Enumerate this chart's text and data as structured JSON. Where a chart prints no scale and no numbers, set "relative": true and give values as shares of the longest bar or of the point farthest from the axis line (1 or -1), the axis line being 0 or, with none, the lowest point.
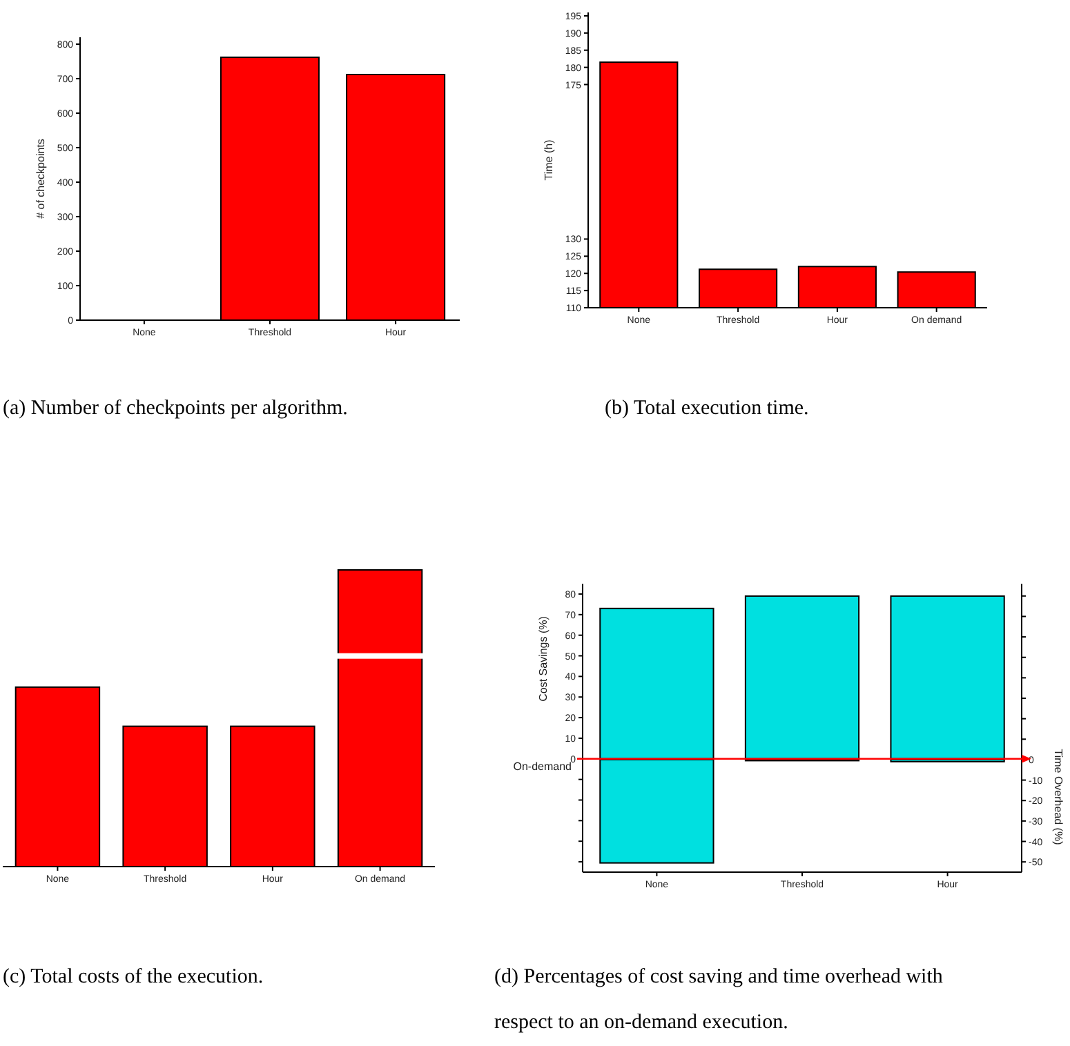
{
  "chart_data": [
    {
      "type": "bar",
      "title": "(a) Number of checkpoints per algorithm.",
      "ylabel": "# of checkpoints",
      "categories": [
        "None",
        "Threshold",
        "Hour"
      ],
      "values": [
        0,
        762,
        712
      ],
      "color": "#ff0000",
      "ylim": [
        0,
        820
      ],
      "yticks": [
        0,
        100,
        200,
        300,
        400,
        500,
        600,
        700,
        800
      ]
    },
    {
      "type": "bar",
      "title": "(b) Total execution time.",
      "ylabel": "Time (h)",
      "categories": [
        "None",
        "Threshold",
        "Hour",
        "On demand"
      ],
      "values": [
        181.5,
        121.2,
        122.0,
        120.4
      ],
      "color": "#ff0000",
      "ylim": [
        110,
        196
      ],
      "yticks": [
        110,
        115,
        120,
        125,
        130,
        175,
        180,
        185,
        190,
        195
      ]
    },
    {
      "type": "bar",
      "title": "(c) Total costs of the execution.",
      "categories": [
        "None",
        "Threshold",
        "Hour",
        "On demand"
      ],
      "values": [
        0.605,
        0.473,
        0.473,
        1
      ],
      "color": "#ff0000",
      "relative": true,
      "tick_labels": "x"
    },
    {
      "type": "bar",
      "stacked": true,
      "title": "(d) Percentages of cost saving and time overhead with respect to an on-demand execution.",
      "ylabel": "Cost Savings (%)",
      "y2label": "Time Overhead (%)",
      "categories": [
        "None",
        "Threshold",
        "Hour"
      ],
      "series": [
        {
          "color": "#00e0e0",
          "values": [
            73,
            79,
            79
          ]
        },
        {
          "color": "#00e0e0",
          "axis": "y2",
          "values": [
            -50.5,
            -0.5,
            -1
          ]
        }
      ],
      "ylim": [
        -55,
        85
      ],
      "yticks": [
        {
          "value": -50,
          "label": null
        },
        {
          "value": -40,
          "label": null
        },
        {
          "value": -30,
          "label": null
        },
        {
          "value": -20,
          "label": null
        },
        {
          "value": -10,
          "label": null
        },
        0,
        10,
        20,
        30,
        40,
        50,
        60,
        70,
        80
      ],
      "y2lim": [
        -55,
        86
      ],
      "y2ticks": [
        -50,
        -40,
        -30,
        -20,
        -10,
        0,
        {
          "value": 10,
          "label": null
        },
        {
          "value": 20,
          "label": null
        },
        {
          "value": 30,
          "label": null
        },
        {
          "value": 40,
          "label": null
        },
        {
          "value": 50,
          "label": null
        },
        {
          "value": 60,
          "label": null
        },
        {
          "value": 70,
          "label": null
        },
        {
          "value": 80,
          "label": null
        }
      ],
      "ref_lines": [
        {
          "axis": "y",
          "value": 0,
          "label": "On-demand",
          "color": "#ff0000"
        }
      ]
    }
  ]
}
